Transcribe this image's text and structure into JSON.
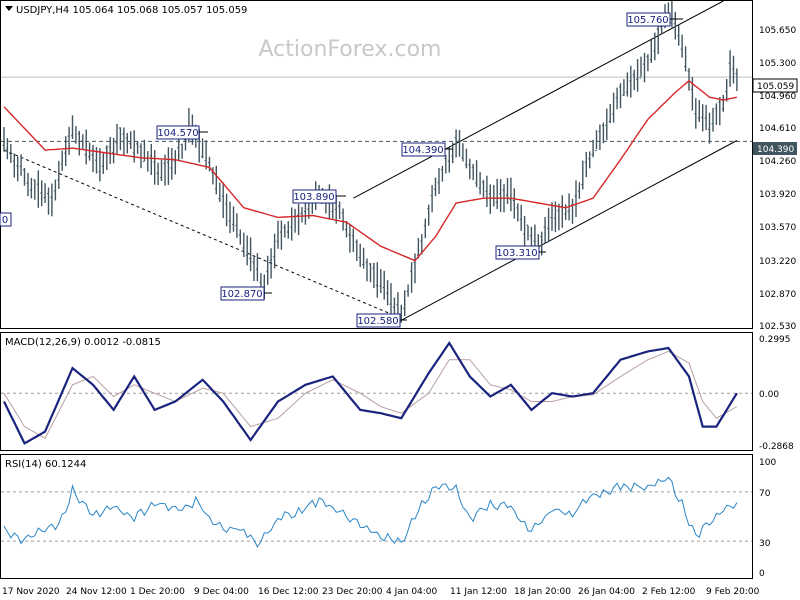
{
  "colors": {
    "price": "#40555f",
    "ma": "#d62728",
    "macd": "#1a237e",
    "signal": "#b8a0a0",
    "rsi": "#2a86c8",
    "label_border": "#1a237e",
    "label_text": "#1a237e",
    "watermark": "#c8c8c8"
  },
  "watermark": "ActionForex.com",
  "price_panel": {
    "header": "USDJPY,H4  105.064 105.068 105.057 105.059",
    "y_ticks": [
      "105.650",
      "105.300",
      "104.960",
      "104.610",
      "104.260",
      "103.920",
      "103.570",
      "103.220",
      "102.870",
      "102.530"
    ],
    "current_price": "105.059",
    "hline_label": "104.390",
    "cut_label": "0",
    "annotations": [
      "104.570",
      "103.890",
      "102.870",
      "102.580",
      "104.390",
      "103.310",
      "105.760"
    ]
  },
  "macd_panel": {
    "header": "MACD(12,26,9) 0.0012 -0.0815",
    "y_ticks": [
      "0.2995",
      "0.00",
      "-0.2868"
    ]
  },
  "rsi_panel": {
    "header": "RSI(14) 60.1244",
    "y_ticks": [
      "100",
      "70",
      "30",
      "0"
    ]
  },
  "x_ticks": [
    "17 Nov 2020",
    "24 Nov 12:00",
    "1 Dec 20:00",
    "9 Dec 04:00",
    "16 Dec 12:00",
    "23 Dec 20:00",
    "4 Jan 04:00",
    "11 Jan 12:00",
    "18 Jan 20:00",
    "26 Jan 04:00",
    "2 Feb 12:00",
    "9 Feb 20:00"
  ],
  "chart_data": {
    "type": "line",
    "title": "USDJPY,H4",
    "price_range": [
      102.45,
      105.85
    ],
    "price_path": [
      [
        0,
        104.35
      ],
      [
        4,
        103.95
      ],
      [
        7,
        103.8
      ],
      [
        10,
        104.5
      ],
      [
        14,
        104.15
      ],
      [
        17,
        104.45
      ],
      [
        20,
        104.3
      ],
      [
        23,
        104.05
      ],
      [
        26,
        104.3
      ],
      [
        27,
        104.55
      ],
      [
        30,
        104.15
      ],
      [
        33,
        103.6
      ],
      [
        36,
        103.2
      ],
      [
        38,
        102.87
      ],
      [
        40,
        103.4
      ],
      [
        43,
        103.6
      ],
      [
        46,
        103.85
      ],
      [
        49,
        103.65
      ],
      [
        52,
        103.2
      ],
      [
        55,
        102.9
      ],
      [
        58,
        102.58
      ],
      [
        60,
        103.1
      ],
      [
        63,
        103.9
      ],
      [
        66,
        104.39
      ],
      [
        68,
        104.1
      ],
      [
        71,
        103.8
      ],
      [
        74,
        103.85
      ],
      [
        76,
        103.5
      ],
      [
        78,
        103.31
      ],
      [
        80,
        103.6
      ],
      [
        83,
        103.7
      ],
      [
        86,
        104.3
      ],
      [
        90,
        104.9
      ],
      [
        94,
        105.2
      ],
      [
        97,
        105.76
      ],
      [
        99,
        105.4
      ],
      [
        101,
        104.7
      ],
      [
        103,
        104.55
      ],
      [
        105,
        104.8
      ],
      [
        106,
        105.15
      ],
      [
        107,
        105.059
      ]
    ],
    "ma_path": [
      [
        0,
        104.75
      ],
      [
        6,
        104.3
      ],
      [
        10,
        104.32
      ],
      [
        15,
        104.27
      ],
      [
        20,
        104.22
      ],
      [
        25,
        104.2
      ],
      [
        30,
        104.12
      ],
      [
        35,
        103.7
      ],
      [
        40,
        103.6
      ],
      [
        45,
        103.62
      ],
      [
        50,
        103.55
      ],
      [
        55,
        103.3
      ],
      [
        60,
        103.15
      ],
      [
        63,
        103.4
      ],
      [
        66,
        103.75
      ],
      [
        70,
        103.8
      ],
      [
        74,
        103.8
      ],
      [
        78,
        103.75
      ],
      [
        82,
        103.7
      ],
      [
        86,
        103.8
      ],
      [
        90,
        104.2
      ],
      [
        94,
        104.62
      ],
      [
        98,
        104.9
      ],
      [
        100,
        105.02
      ],
      [
        103,
        104.85
      ],
      [
        105,
        104.82
      ],
      [
        107,
        104.85
      ]
    ],
    "channel_upper": [
      [
        51,
        103.8
      ],
      [
        105,
        105.85
      ]
    ],
    "channel_lower": [
      [
        58,
        102.53
      ],
      [
        107,
        104.4
      ]
    ],
    "trendline_down": [
      [
        0,
        104.3
      ],
      [
        57,
        102.58
      ]
    ],
    "hline_level": 104.39,
    "macd_range": [
      -0.34,
      0.36
    ],
    "macd_path": [
      [
        0,
        -0.05
      ],
      [
        3,
        -0.3
      ],
      [
        6,
        -0.23
      ],
      [
        10,
        0.15
      ],
      [
        13,
        0.05
      ],
      [
        16,
        -0.1
      ],
      [
        19,
        0.1
      ],
      [
        22,
        -0.1
      ],
      [
        25,
        -0.05
      ],
      [
        29,
        0.08
      ],
      [
        32,
        -0.05
      ],
      [
        36,
        -0.28
      ],
      [
        40,
        -0.05
      ],
      [
        44,
        0.05
      ],
      [
        48,
        0.1
      ],
      [
        52,
        -0.1
      ],
      [
        55,
        -0.12
      ],
      [
        58,
        -0.15
      ],
      [
        62,
        0.12
      ],
      [
        65,
        0.3
      ],
      [
        68,
        0.1
      ],
      [
        71,
        -0.02
      ],
      [
        74,
        0.05
      ],
      [
        77,
        -0.1
      ],
      [
        80,
        0.0
      ],
      [
        83,
        -0.02
      ],
      [
        86,
        0.0
      ],
      [
        90,
        0.2
      ],
      [
        94,
        0.25
      ],
      [
        97,
        0.27
      ],
      [
        100,
        0.1
      ],
      [
        102,
        -0.2
      ],
      [
        104,
        -0.2
      ],
      [
        107,
        0.0
      ]
    ],
    "signal_path": [
      [
        0,
        0.0
      ],
      [
        3,
        -0.2
      ],
      [
        6,
        -0.27
      ],
      [
        10,
        0.05
      ],
      [
        13,
        0.1
      ],
      [
        16,
        -0.02
      ],
      [
        19,
        0.05
      ],
      [
        22,
        0.0
      ],
      [
        25,
        -0.05
      ],
      [
        29,
        0.03
      ],
      [
        32,
        0.0
      ],
      [
        36,
        -0.2
      ],
      [
        40,
        -0.15
      ],
      [
        44,
        0.0
      ],
      [
        48,
        0.08
      ],
      [
        52,
        0.0
      ],
      [
        55,
        -0.08
      ],
      [
        58,
        -0.12
      ],
      [
        62,
        0.0
      ],
      [
        65,
        0.2
      ],
      [
        68,
        0.2
      ],
      [
        71,
        0.05
      ],
      [
        74,
        0.02
      ],
      [
        77,
        -0.05
      ],
      [
        80,
        -0.05
      ],
      [
        83,
        -0.02
      ],
      [
        86,
        -0.01
      ],
      [
        90,
        0.1
      ],
      [
        94,
        0.2
      ],
      [
        97,
        0.25
      ],
      [
        100,
        0.18
      ],
      [
        102,
        -0.05
      ],
      [
        104,
        -0.15
      ],
      [
        107,
        -0.08
      ]
    ],
    "rsi_range": [
      0,
      100
    ],
    "rsi_levels": [
      70,
      30
    ],
    "rsi_path": [
      [
        0,
        40
      ],
      [
        3,
        28
      ],
      [
        5,
        40
      ],
      [
        8,
        42
      ],
      [
        10,
        72
      ],
      [
        13,
        50
      ],
      [
        16,
        58
      ],
      [
        19,
        48
      ],
      [
        22,
        62
      ],
      [
        25,
        55
      ],
      [
        28,
        62
      ],
      [
        31,
        42
      ],
      [
        34,
        40
      ],
      [
        37,
        28
      ],
      [
        40,
        48
      ],
      [
        43,
        55
      ],
      [
        46,
        62
      ],
      [
        49,
        55
      ],
      [
        52,
        42
      ],
      [
        55,
        35
      ],
      [
        58,
        28
      ],
      [
        60,
        52
      ],
      [
        63,
        74
      ],
      [
        66,
        72
      ],
      [
        68,
        48
      ],
      [
        71,
        60
      ],
      [
        74,
        58
      ],
      [
        77,
        38
      ],
      [
        80,
        55
      ],
      [
        83,
        52
      ],
      [
        86,
        68
      ],
      [
        90,
        74
      ],
      [
        94,
        75
      ],
      [
        97,
        80
      ],
      [
        99,
        60
      ],
      [
        101,
        32
      ],
      [
        103,
        45
      ],
      [
        105,
        55
      ],
      [
        107,
        60
      ]
    ]
  }
}
